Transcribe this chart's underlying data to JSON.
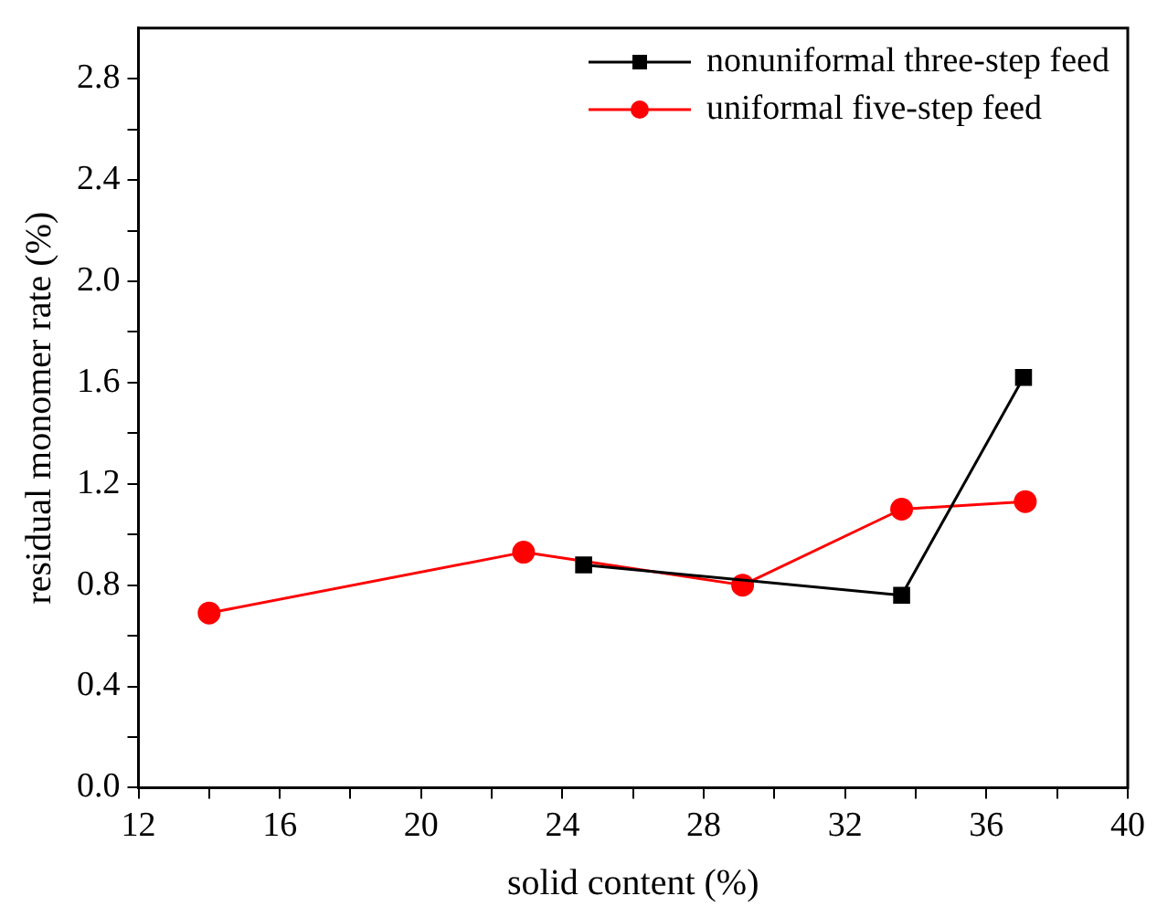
{
  "chart_data": {
    "type": "line",
    "xlabel": "solid content (%)",
    "ylabel": "residual monomer rate (%)",
    "xlim": [
      12,
      40
    ],
    "xticks": [
      12,
      {
        "value": 14,
        "label": null
      },
      16,
      {
        "value": 18,
        "label": null
      },
      20,
      {
        "value": 22,
        "label": null
      },
      24,
      {
        "value": 26,
        "label": null
      },
      28,
      {
        "value": 30,
        "label": null
      },
      32,
      {
        "value": 34,
        "label": null
      },
      36,
      {
        "value": 38,
        "label": null
      },
      40
    ],
    "ylim": [
      0,
      3.0
    ],
    "yticks": [
      {
        "value": 0,
        "label": "0.0"
      },
      {
        "value": 0.2,
        "label": null
      },
      {
        "value": 0.4,
        "label": "0.4"
      },
      {
        "value": 0.6,
        "label": null
      },
      {
        "value": 0.8,
        "label": "0.8"
      },
      {
        "value": 1.0,
        "label": null
      },
      {
        "value": 1.2,
        "label": "1.2"
      },
      {
        "value": 1.4,
        "label": null
      },
      {
        "value": 1.6,
        "label": "1.6"
      },
      {
        "value": 1.8,
        "label": null
      },
      {
        "value": 2.0,
        "label": "2.0"
      },
      {
        "value": 2.2,
        "label": null
      },
      {
        "value": 2.4,
        "label": "2.4"
      },
      {
        "value": 2.6,
        "label": null
      },
      {
        "value": 2.8,
        "label": "2.8"
      }
    ],
    "grid": false,
    "legend": "top right",
    "line_style": "solid",
    "series": [
      {
        "name": "nonuniformal three-step feed",
        "color": "#000000",
        "marker": "square",
        "x": [
          24.6,
          33.6,
          37.05
        ],
        "values": [
          0.88,
          0.76,
          1.62
        ]
      },
      {
        "name": "uniformal five-step feed",
        "color": "#ff0000",
        "marker": "circle",
        "x": [
          14,
          22.9,
          29.1,
          33.6,
          37.1
        ],
        "values": [
          0.69,
          0.93,
          0.8,
          1.1,
          1.13
        ]
      }
    ]
  }
}
